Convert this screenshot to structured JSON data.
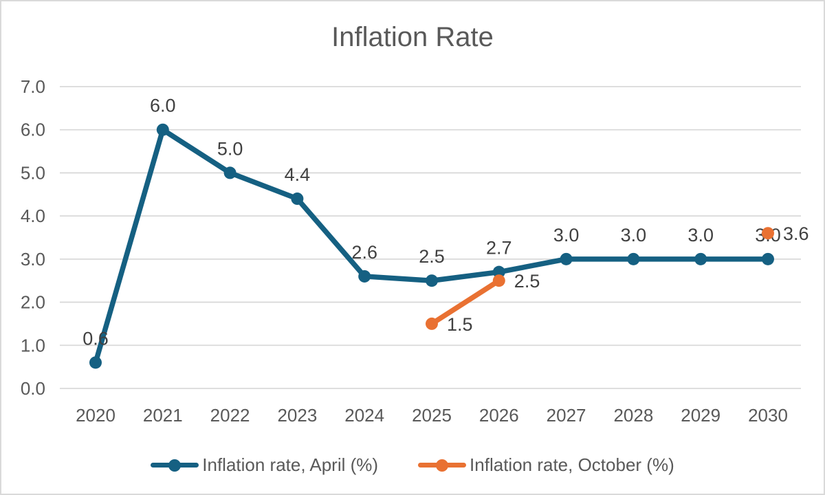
{
  "chart_data": {
    "type": "line",
    "title": "Inflation Rate",
    "categories": [
      "2020",
      "2021",
      "2022",
      "2023",
      "2024",
      "2025",
      "2026",
      "2027",
      "2028",
      "2029",
      "2030"
    ],
    "y_ticks": [
      "0.0",
      "1.0",
      "2.0",
      "3.0",
      "4.0",
      "5.0",
      "6.0",
      "7.0"
    ],
    "ylim": [
      0,
      7
    ],
    "grid": true,
    "legend_position": "bottom",
    "series": [
      {
        "name": "Inflation rate, April (%)",
        "color": "#156082",
        "label_position": "above",
        "values": [
          0.6,
          6.0,
          5.0,
          4.4,
          2.6,
          2.5,
          2.7,
          3.0,
          3.0,
          3.0,
          3.0
        ],
        "labels": [
          "0.6",
          "6.0",
          "5.0",
          "4.4",
          "2.6",
          "2.5",
          "2.7",
          "3.0",
          "3.0",
          "3.0",
          "3.0"
        ]
      },
      {
        "name": "Inflation rate, October (%)",
        "color": "#E97132",
        "label_position": "right",
        "values": [
          null,
          null,
          null,
          null,
          null,
          1.5,
          2.5,
          null,
          null,
          null,
          3.6
        ],
        "labels": [
          null,
          null,
          null,
          null,
          null,
          "1.5",
          "2.5",
          null,
          null,
          null,
          "3.6"
        ]
      }
    ]
  },
  "colors": {
    "grid": "#d9d9d9",
    "axis_text": "#595959",
    "data_label_text": "#404040",
    "title_text": "#595959",
    "background": "#ffffff",
    "border": "#d9d9d9"
  }
}
